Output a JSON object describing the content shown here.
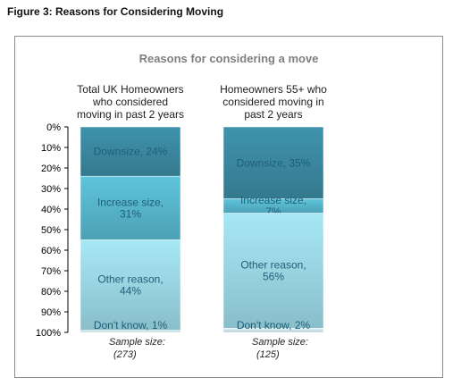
{
  "figure_title": "Figure 3: Reasons for Considering Moving",
  "chart_data": {
    "type": "bar",
    "stacked": true,
    "title": "Reasons for considering a move",
    "ylim": [
      0,
      100
    ],
    "y_ticks": [
      "0%",
      "10%",
      "20%",
      "30%",
      "40%",
      "50%",
      "60%",
      "70%",
      "80%",
      "90%",
      "100%"
    ],
    "categories": [
      "Total UK Homeowners who considered moving in past 2 years",
      "Homeowners 55+ who considered moving in past 2 years"
    ],
    "category_label_lines": [
      [
        "Total UK Homeowners",
        "who considered",
        "moving in past 2 years"
      ],
      [
        "Homeowners 55+ who",
        "considered moving in",
        "past 2 years"
      ]
    ],
    "series": [
      {
        "name": "Downsize",
        "values": [
          24,
          35
        ],
        "color": "#3f93ad",
        "labels": [
          "Downsize, 24%",
          "Downsize, 35%"
        ]
      },
      {
        "name": "Increase size",
        "values": [
          31,
          7
        ],
        "color": "#5ec4dc",
        "labels": [
          "Increase size,|31%",
          "Increase size,|7%"
        ]
      },
      {
        "name": "Other reason",
        "values": [
          44,
          56
        ],
        "color": "#a7e8f6",
        "labels": [
          "Other reason,|44%",
          "Other reason,|56%"
        ]
      },
      {
        "name": "Don't know",
        "values": [
          1,
          2
        ],
        "color": "#dff6fb",
        "labels": [
          "Don't know, 1%",
          "Don't know, 2%"
        ]
      }
    ],
    "sample_label": "Sample size:",
    "sample_sizes": [
      "(273)",
      "(125)"
    ],
    "grid": false,
    "legend": "none"
  }
}
